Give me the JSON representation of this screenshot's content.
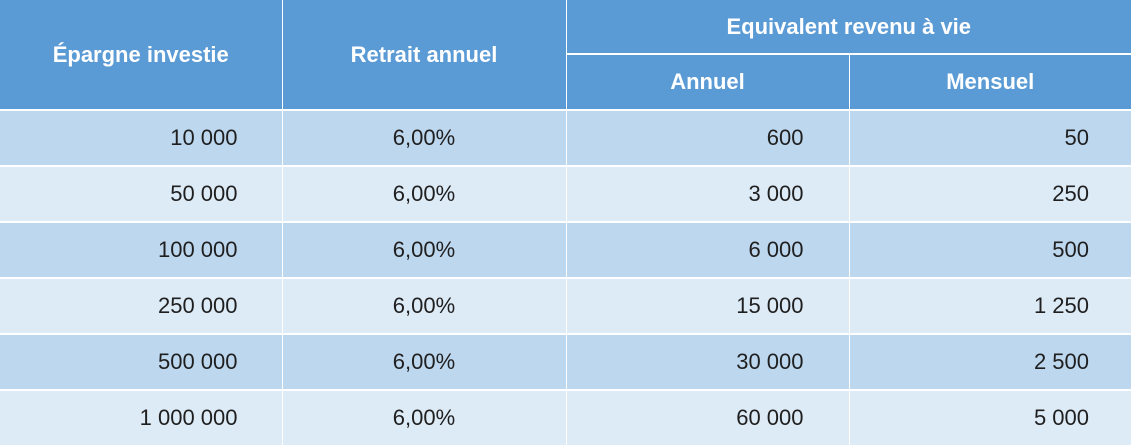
{
  "table": {
    "headers": {
      "savings": "Épargne investie",
      "withdrawal": "Retrait annuel",
      "equivalent_group": "Equivalent revenu à vie",
      "annual": "Annuel",
      "monthly": "Mensuel"
    },
    "rows": [
      {
        "savings": "10 000",
        "rate": "6,00%",
        "annual": "600",
        "monthly": "50"
      },
      {
        "savings": "50 000",
        "rate": "6,00%",
        "annual": "3 000",
        "monthly": "250"
      },
      {
        "savings": "100 000",
        "rate": "6,00%",
        "annual": "6 000",
        "monthly": "500"
      },
      {
        "savings": "250 000",
        "rate": "6,00%",
        "annual": "15 000",
        "monthly": "1 250"
      },
      {
        "savings": "500 000",
        "rate": "6,00%",
        "annual": "30 000",
        "monthly": "2 500"
      },
      {
        "savings": "1 000 000",
        "rate": "6,00%",
        "annual": "60 000",
        "monthly": "5 000"
      }
    ]
  },
  "colors": {
    "header": "#5b9bd5",
    "row_odd": "#bdd7ee",
    "row_even": "#ddebf7"
  }
}
